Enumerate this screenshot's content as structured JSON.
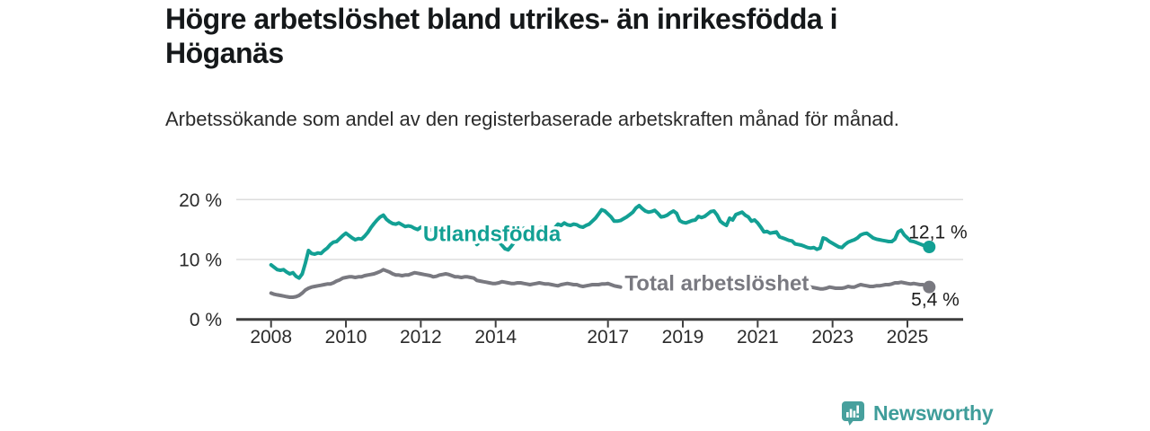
{
  "header": {
    "title": "Högre arbetslöshet bland utrikes- än inrikesfödda i Höganäs",
    "subtitle": "Arbetssökande som andel av den registerbaserade arbetskraften månad för månad."
  },
  "branding": {
    "name": "Newsworthy",
    "icon": "speech-bubble-bar-chart",
    "color": "#47A09D"
  },
  "colors": {
    "accent": "#13A094",
    "total_gray": "#797980",
    "title_text": "#15181A",
    "body_text": "#2B2B2B",
    "axis": "#3E3E3E",
    "grid": "#DDDDDD",
    "value_label": "#1C1C1C",
    "background": "#FFFFFF"
  },
  "chart_data": {
    "type": "line",
    "title": "Högre arbetslöshet bland utrikes- än inrikesfödda i Höganäs",
    "subtitle": "Arbetssökande som andel av den registerbaserade arbetskraften månad för månad.",
    "x_unit": "year-month",
    "y_unit": "% av registerbaserad arbetskraft",
    "grid": true,
    "legend": "inline-labels",
    "x_axis": {
      "ticks": [
        "2008",
        "2010",
        "2012",
        "2014",
        "2017",
        "2019",
        "2021",
        "2023",
        "2025"
      ],
      "tick_years": [
        2008,
        2010,
        2012,
        2014,
        2017,
        2019,
        2021,
        2023,
        2025
      ],
      "range": [
        2007.05,
        2026.5
      ]
    },
    "y_axis": {
      "ticks": [
        {
          "value": 0,
          "label": "0 %"
        },
        {
          "value": 10,
          "label": "10 %"
        },
        {
          "value": 20,
          "label": "20 %"
        }
      ],
      "range": [
        0,
        21.5
      ]
    },
    "series": [
      {
        "name": "Utlandsfödda",
        "color": "#13A094",
        "end_label": "12,1 %",
        "end_value": 12.1,
        "segments": [
          {
            "start": 2008.0,
            "step_years": 0.08333,
            "values": [
              9.1,
              8.7,
              8.3,
              8.2,
              8.3,
              7.9,
              7.6,
              7.8,
              7.2,
              6.9,
              7.6,
              9.4,
              11.5,
              11.0,
              10.9,
              11.1,
              11.0,
              11.5,
              11.9,
              12.5,
              12.9,
              13.0,
              13.5,
              14.0,
              14.4,
              14.0,
              13.6,
              13.3,
              13.5,
              13.4,
              13.9,
              14.5,
              15.3,
              16.0,
              16.6,
              17.1,
              17.4,
              16.7,
              16.3,
              16.0,
              15.9,
              16.1,
              15.8,
              15.5,
              15.6,
              15.5,
              15.2,
              15.0,
              15.4,
              15.2,
              14.9,
              15.0,
              14.8,
              14.9,
              15.1,
              14.9,
              14.7,
              14.9,
              15.1,
              14.9,
              14.7,
              14.8,
              14.9,
              14.6,
              14.3,
              13.6,
              12.5,
              13.0,
              13.5,
              13.7,
              13.5,
              13.4,
              13.3,
              13.0,
              12.4,
              11.8,
              11.6,
              12.2,
              12.9,
              13.8,
              14.5,
              15.2,
              15.0,
              14.8,
              14.9,
              15.0,
              15.2,
              15.4,
              14.6,
              14.8,
              14.9,
              15.3,
              15.9,
              15.7,
              16.1,
              15.8,
              15.7,
              15.9,
              15.8,
              15.5,
              15.4,
              15.7,
              15.9,
              16.4,
              16.9,
              17.6,
              18.3,
              18.1,
              17.6,
              17.1,
              16.4,
              16.4,
              16.5,
              16.8,
              17.1,
              17.5,
              17.9,
              18.6,
              19.0,
              18.5,
              18.1,
              17.9,
              18.0,
              18.2,
              17.7,
              17.1,
              17.2,
              17.4,
              17.8,
              18.1,
              17.7,
              16.5,
              16.2,
              16.1,
              16.3,
              16.5,
              16.6,
              17.2,
              17.0,
              17.2,
              17.6,
              18.0,
              18.1,
              17.4,
              16.4,
              16.0,
              15.7,
              16.9,
              16.6,
              17.5,
              17.7,
              17.9,
              17.4,
              17.1,
              16.4,
              16.6,
              16.1,
              15.4,
              14.6,
              14.7,
              14.4,
              14.5,
              14.6,
              13.8,
              13.6,
              13.4,
              13.2,
              13.1,
              12.6,
              12.5,
              12.4,
              12.2,
              12.0,
              11.9,
              12.0,
              11.7,
              11.9,
              13.6,
              13.4,
              13.0,
              12.7,
              12.4,
              12.1,
              12.0,
              12.5,
              12.9,
              13.1,
              13.3,
              13.6,
              14.1,
              14.3,
              14.4,
              14.0,
              13.6,
              13.4,
              13.3,
              13.2,
              13.1,
              13.0,
              13.0,
              13.4,
              14.6,
              14.9,
              14.1,
              13.6,
              13.1,
              13.0,
              12.8,
              12.6,
              12.4,
              12.3,
              12.1
            ]
          }
        ]
      },
      {
        "name": "Total arbetslöshet",
        "color": "#797980",
        "end_label": "5,4 %",
        "end_value": 5.4,
        "segments": [
          {
            "start": 2008.0,
            "step_years": 0.08333,
            "values": [
              4.4,
              4.2,
              4.1,
              4.0,
              3.9,
              3.8,
              3.7,
              3.7,
              3.8,
              4.0,
              4.4,
              4.9,
              5.2,
              5.4,
              5.5,
              5.6,
              5.7,
              5.8,
              5.9,
              5.9,
              6.1,
              6.4,
              6.6,
              6.9,
              7.0,
              7.1,
              7.1,
              7.0,
              7.1,
              7.1,
              7.3,
              7.4,
              7.5,
              7.6,
              7.8,
              8.0,
              8.3,
              8.1,
              7.9,
              7.6,
              7.4,
              7.4,
              7.3,
              7.4,
              7.4,
              7.6,
              7.8,
              7.7,
              7.6,
              7.5,
              7.4,
              7.3,
              7.1,
              7.2,
              7.4,
              7.5,
              7.6,
              7.5,
              7.3,
              7.1,
              7.1,
              7.0,
              7.1,
              7.1,
              7.0,
              6.9,
              6.5,
              6.4,
              6.3,
              6.2,
              6.1,
              6.0,
              6.0,
              6.1,
              6.3,
              6.2,
              6.1,
              6.0,
              6.0,
              6.1,
              6.1,
              6.0,
              5.9,
              5.8,
              5.9,
              6.0,
              6.1,
              6.0,
              5.9,
              5.9,
              5.8,
              5.7,
              5.6,
              5.8,
              5.9,
              6.0,
              5.9,
              5.8,
              5.8,
              5.6,
              5.5,
              5.6,
              5.7,
              5.8,
              5.8,
              5.8,
              5.9,
              5.9,
              6.0,
              5.8,
              5.6,
              5.5,
              5.4
            ]
          },
          {
            "start": 2022.0833,
            "step_years": 0.08333,
            "values": [
              5.6,
              5.4,
              5.2,
              5.3,
              5.4,
              5.3,
              5.2,
              5.1,
              5.1,
              5.2,
              5.4,
              5.3,
              5.2,
              5.2,
              5.2,
              5.3,
              5.5,
              5.4,
              5.4,
              5.6,
              5.8,
              5.7,
              5.6,
              5.5,
              5.5,
              5.6,
              5.6,
              5.7,
              5.8,
              5.8,
              5.9,
              6.1,
              6.1,
              6.2,
              6.1,
              6.0,
              5.9,
              6.0,
              5.9,
              5.8,
              5.8,
              5.6,
              5.4
            ]
          }
        ]
      }
    ]
  }
}
